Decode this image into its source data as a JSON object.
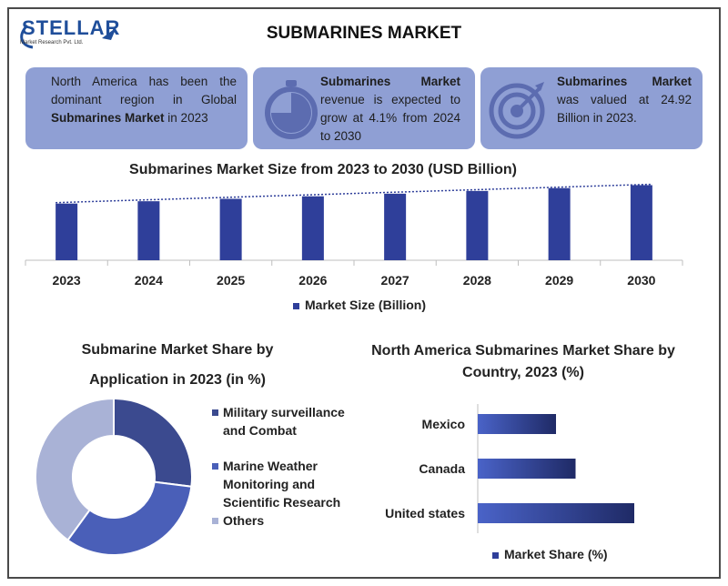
{
  "header": {
    "logo_text": "STELLAR",
    "logo_sub": "Market Research Pvt. Ltd.",
    "title": "SUBMARINES MARKET"
  },
  "cards": [
    {
      "bold": "",
      "text_before": "North America has been the dominant region in Global ",
      "bold_mid": "Submarines Market",
      "text_after": " in 2023",
      "icon": ""
    },
    {
      "bold": "Submarines Market",
      "text": " revenue is expected to grow at 4.1% from 2024 to 2030",
      "icon": "stopwatch-icon"
    },
    {
      "bold": "Submarines Market",
      "text": " was valued at 24.92 Billion in 2023.",
      "icon": "target-icon"
    }
  ],
  "colors": {
    "card_bg": "#8f9fd4",
    "bar": "#2f3f9a",
    "donut_military": "#3b4a8f",
    "donut_marine": "#4a5fb8",
    "donut_others": "#a9b2d6"
  },
  "chart_data": [
    {
      "type": "bar",
      "title": "Submarines Market Size from 2023 to 2030 (USD Billion)",
      "categories": [
        "2023",
        "2024",
        "2025",
        "2026",
        "2027",
        "2028",
        "2029",
        "2030"
      ],
      "series": [
        {
          "name": "Market Size (Billion)",
          "values": [
            24.92,
            25.94,
            27.0,
            28.11,
            29.26,
            30.46,
            31.71,
            33.0
          ]
        }
      ],
      "trendline": "dotted linear",
      "ylim": [
        0,
        36
      ],
      "legend": "bottom"
    },
    {
      "type": "pie",
      "title": "Submarine Market Share by Application in 2023  (in %)",
      "variant": "donut",
      "labels": [
        "Military surveillance and Combat",
        "Marine Weather Monitoring and Scientific Research",
        "Others"
      ],
      "values": [
        27,
        33,
        40
      ],
      "legend": "right"
    },
    {
      "type": "bar",
      "orientation": "horizontal",
      "title": "North America Submarines Market Share by Country, 2023 (%)",
      "categories": [
        "Mexico",
        "Canada",
        "United states"
      ],
      "series": [
        {
          "name": "Market Share (%)",
          "values": [
            12,
            15,
            24
          ]
        }
      ],
      "legend": "bottom"
    }
  ]
}
